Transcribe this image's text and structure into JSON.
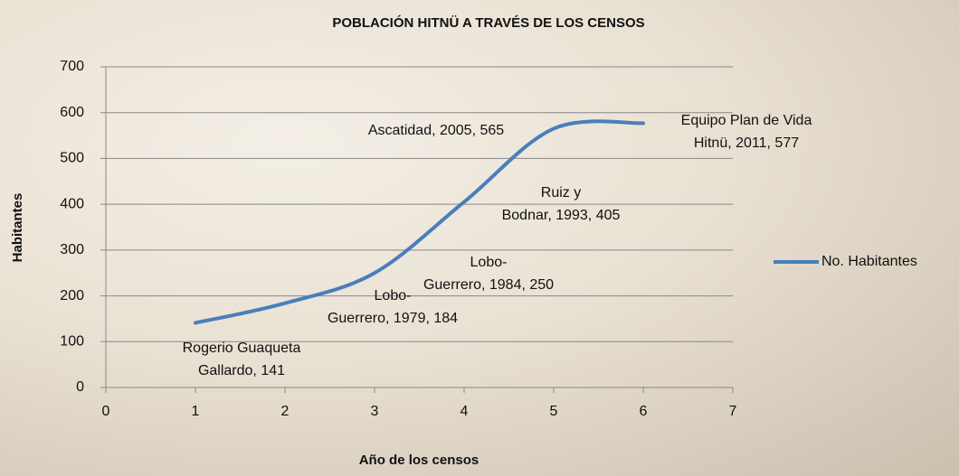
{
  "chart_data": {
    "type": "line",
    "title": "POBLACIÓN HITNÜ A TRAVÉS DE LOS CENSOS",
    "xlabel": "Año de los censos",
    "ylabel": "Habitantes",
    "x": [
      1,
      2,
      3,
      4,
      5,
      6
    ],
    "series": [
      {
        "name": "No. Habitantes",
        "color": "#4a7ebb",
        "values": [
          141,
          184,
          250,
          405,
          565,
          577
        ],
        "value_labels": [
          "Rogerio Guaqueta\nGallardo, 141",
          "Lobo-\nGuerrero, 1979, 184",
          "Lobo-\nGuerrero, 1984, 250",
          "Ruiz y\nBodnar, 1993, 405",
          "Ascatidad, 2005, 565",
          "Equipo Plan de Vida\nHitnü, 2011, 577"
        ]
      }
    ],
    "xlim": [
      0,
      7
    ],
    "xticks": [
      0,
      1,
      2,
      3,
      4,
      5,
      6,
      7
    ],
    "ylim": [
      0,
      700
    ],
    "yticks": [
      0,
      100,
      200,
      300,
      400,
      500,
      600,
      700
    ],
    "grid": true,
    "legend": "right"
  }
}
